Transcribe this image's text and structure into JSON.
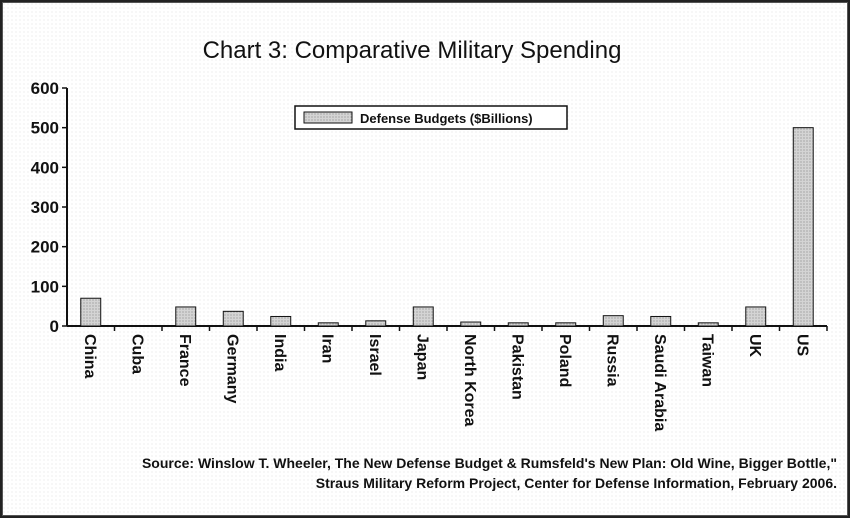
{
  "chart_data": {
    "type": "bar",
    "title": "Chart 3: Comparative Military Spending",
    "xlabel": "",
    "ylabel": "",
    "categories": [
      "China",
      "Cuba",
      "France",
      "Germany",
      "India",
      "Iran",
      "Israel",
      "Japan",
      "North Korea",
      "Pakistan",
      "Poland",
      "Russia",
      "Saudi Arabia",
      "Taiwan",
      "UK",
      "US"
    ],
    "series": [
      {
        "name": "Defense Budgets ($Billions)",
        "values": [
          70,
          0,
          48,
          37,
          24,
          8,
          13,
          48,
          10,
          8,
          8,
          26,
          24,
          8,
          48,
          500
        ]
      }
    ],
    "ylim": [
      0,
      600
    ],
    "yticks": [
      "0",
      "100",
      "200",
      "300",
      "400",
      "500",
      "600"
    ],
    "grid": false,
    "legend_position": "top-center"
  },
  "source_lines": [
    "Source:  Winslow T. Wheeler, The New Defense Budget & Rumsfeld's New Plan:  Old Wine, Bigger Bottle,\"",
    "Straus Military Reform Project, Center for Defense Information, February 2006."
  ],
  "colors": {
    "bar_fill": "#c8c8c8",
    "bar_stroke": "#111111",
    "axis": "#111111"
  }
}
